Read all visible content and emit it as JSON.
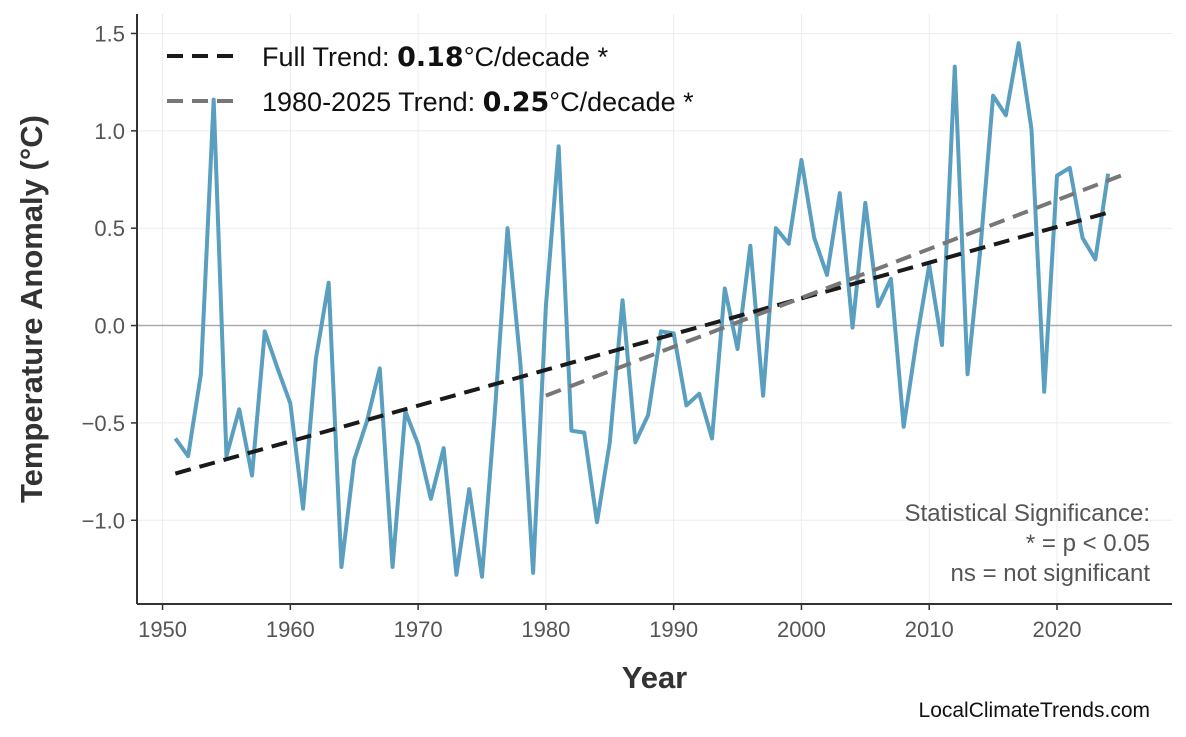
{
  "chart_data": {
    "type": "line",
    "title": "",
    "xlabel": "Year",
    "ylabel": "Temperature Anomaly (°C)",
    "xlim": [
      1948,
      2029
    ],
    "ylim": [
      -1.43,
      1.6
    ],
    "xticks": [
      1950,
      1960,
      1970,
      1980,
      1990,
      2000,
      2010,
      2020
    ],
    "yticks": [
      -1.0,
      -0.5,
      0.0,
      0.5,
      1.0,
      1.5
    ],
    "ytick_labels": [
      "−1.0",
      "−0.5",
      "0.0",
      "0.5",
      "1.0",
      "1.5"
    ],
    "grid": true,
    "zero_line": true,
    "legend_placement": "top-left",
    "series": [
      {
        "color": "#5a9fc0",
        "x": [
          1951,
          1952,
          1953,
          1954,
          1955,
          1956,
          1957,
          1958,
          1959,
          1960,
          1961,
          1962,
          1963,
          1964,
          1965,
          1966,
          1967,
          1968,
          1969,
          1970,
          1971,
          1972,
          1973,
          1974,
          1975,
          1976,
          1977,
          1978,
          1979,
          1980,
          1981,
          1982,
          1983,
          1984,
          1985,
          1986,
          1987,
          1988,
          1989,
          1990,
          1991,
          1992,
          1993,
          1994,
          1995,
          1996,
          1997,
          1998,
          1999,
          2000,
          2001,
          2002,
          2003,
          2004,
          2005,
          2006,
          2007,
          2008,
          2009,
          2010,
          2011,
          2012,
          2013,
          2014,
          2015,
          2016,
          2017,
          2018,
          2019,
          2020,
          2021,
          2022,
          2023,
          2024
        ],
        "y": [
          -0.58,
          -0.67,
          -0.25,
          1.16,
          -0.67,
          -0.43,
          -0.77,
          -0.03,
          -0.22,
          -0.4,
          -0.94,
          -0.17,
          0.22,
          -1.24,
          -0.69,
          -0.49,
          -0.22,
          -1.24,
          -0.44,
          -0.61,
          -0.89,
          -0.63,
          -1.28,
          -0.84,
          -1.29,
          -0.45,
          0.5,
          -0.19,
          -1.27,
          0.1,
          0.92,
          -0.54,
          -0.55,
          -1.01,
          -0.6,
          0.13,
          -0.6,
          -0.46,
          -0.03,
          -0.04,
          -0.41,
          -0.35,
          -0.58,
          0.19,
          -0.12,
          0.41,
          -0.36,
          0.5,
          0.42,
          0.85,
          0.45,
          0.26,
          0.68,
          -0.01,
          0.63,
          0.1,
          0.24,
          -0.52,
          -0.08,
          0.31,
          -0.1,
          1.33,
          -0.25,
          0.39,
          1.18,
          1.08,
          1.45,
          1.01,
          -0.34,
          0.77,
          0.81,
          0.45,
          0.34,
          0.78
        ]
      }
    ],
    "trends": [
      {
        "name_prefix": "Full Trend: ",
        "value": "0.18",
        "suffix": "°C/decade *",
        "color": "#1a1a1a",
        "x": [
          1951,
          2024
        ],
        "y": [
          -0.76,
          0.58
        ]
      },
      {
        "name_prefix": "1980-2025 Trend: ",
        "value": "0.25",
        "suffix": "°C/decade *",
        "color": "#777777",
        "x": [
          1980,
          2025
        ],
        "y": [
          -0.36,
          0.77
        ]
      }
    ],
    "annotation": [
      "Statistical Significance:",
      "* = p < 0.05",
      "ns = not significant"
    ],
    "credit": "LocalClimateTrends.com"
  }
}
